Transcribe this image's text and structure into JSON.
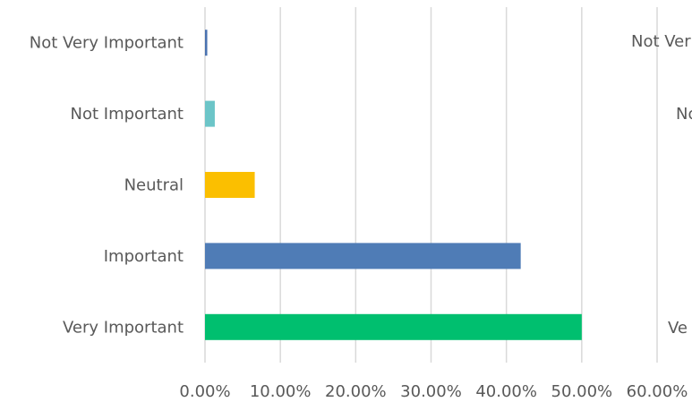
{
  "chart_data": {
    "type": "bar",
    "orientation": "horizontal",
    "categories": [
      "Not Very Important",
      "Not Important",
      "Neutral",
      "Important",
      "Very Important"
    ],
    "values": [
      0.3,
      1.3,
      6.6,
      41.9,
      50.0
    ],
    "colors": [
      "#4A72B0",
      "#6CC5C8",
      "#FBBF00",
      "#4F7CB6",
      "#00BF6F"
    ],
    "xlim": [
      0,
      60
    ],
    "xticks": [
      "0.00%",
      "10.00%",
      "20.00%",
      "30.00%",
      "40.00%",
      "50.00%",
      "60.00%"
    ],
    "grid": "vertical",
    "title": "",
    "xlabel": "",
    "ylabel": "",
    "cropped_neighbor_labels": [
      "Not Ver",
      "No",
      "Ve"
    ]
  }
}
